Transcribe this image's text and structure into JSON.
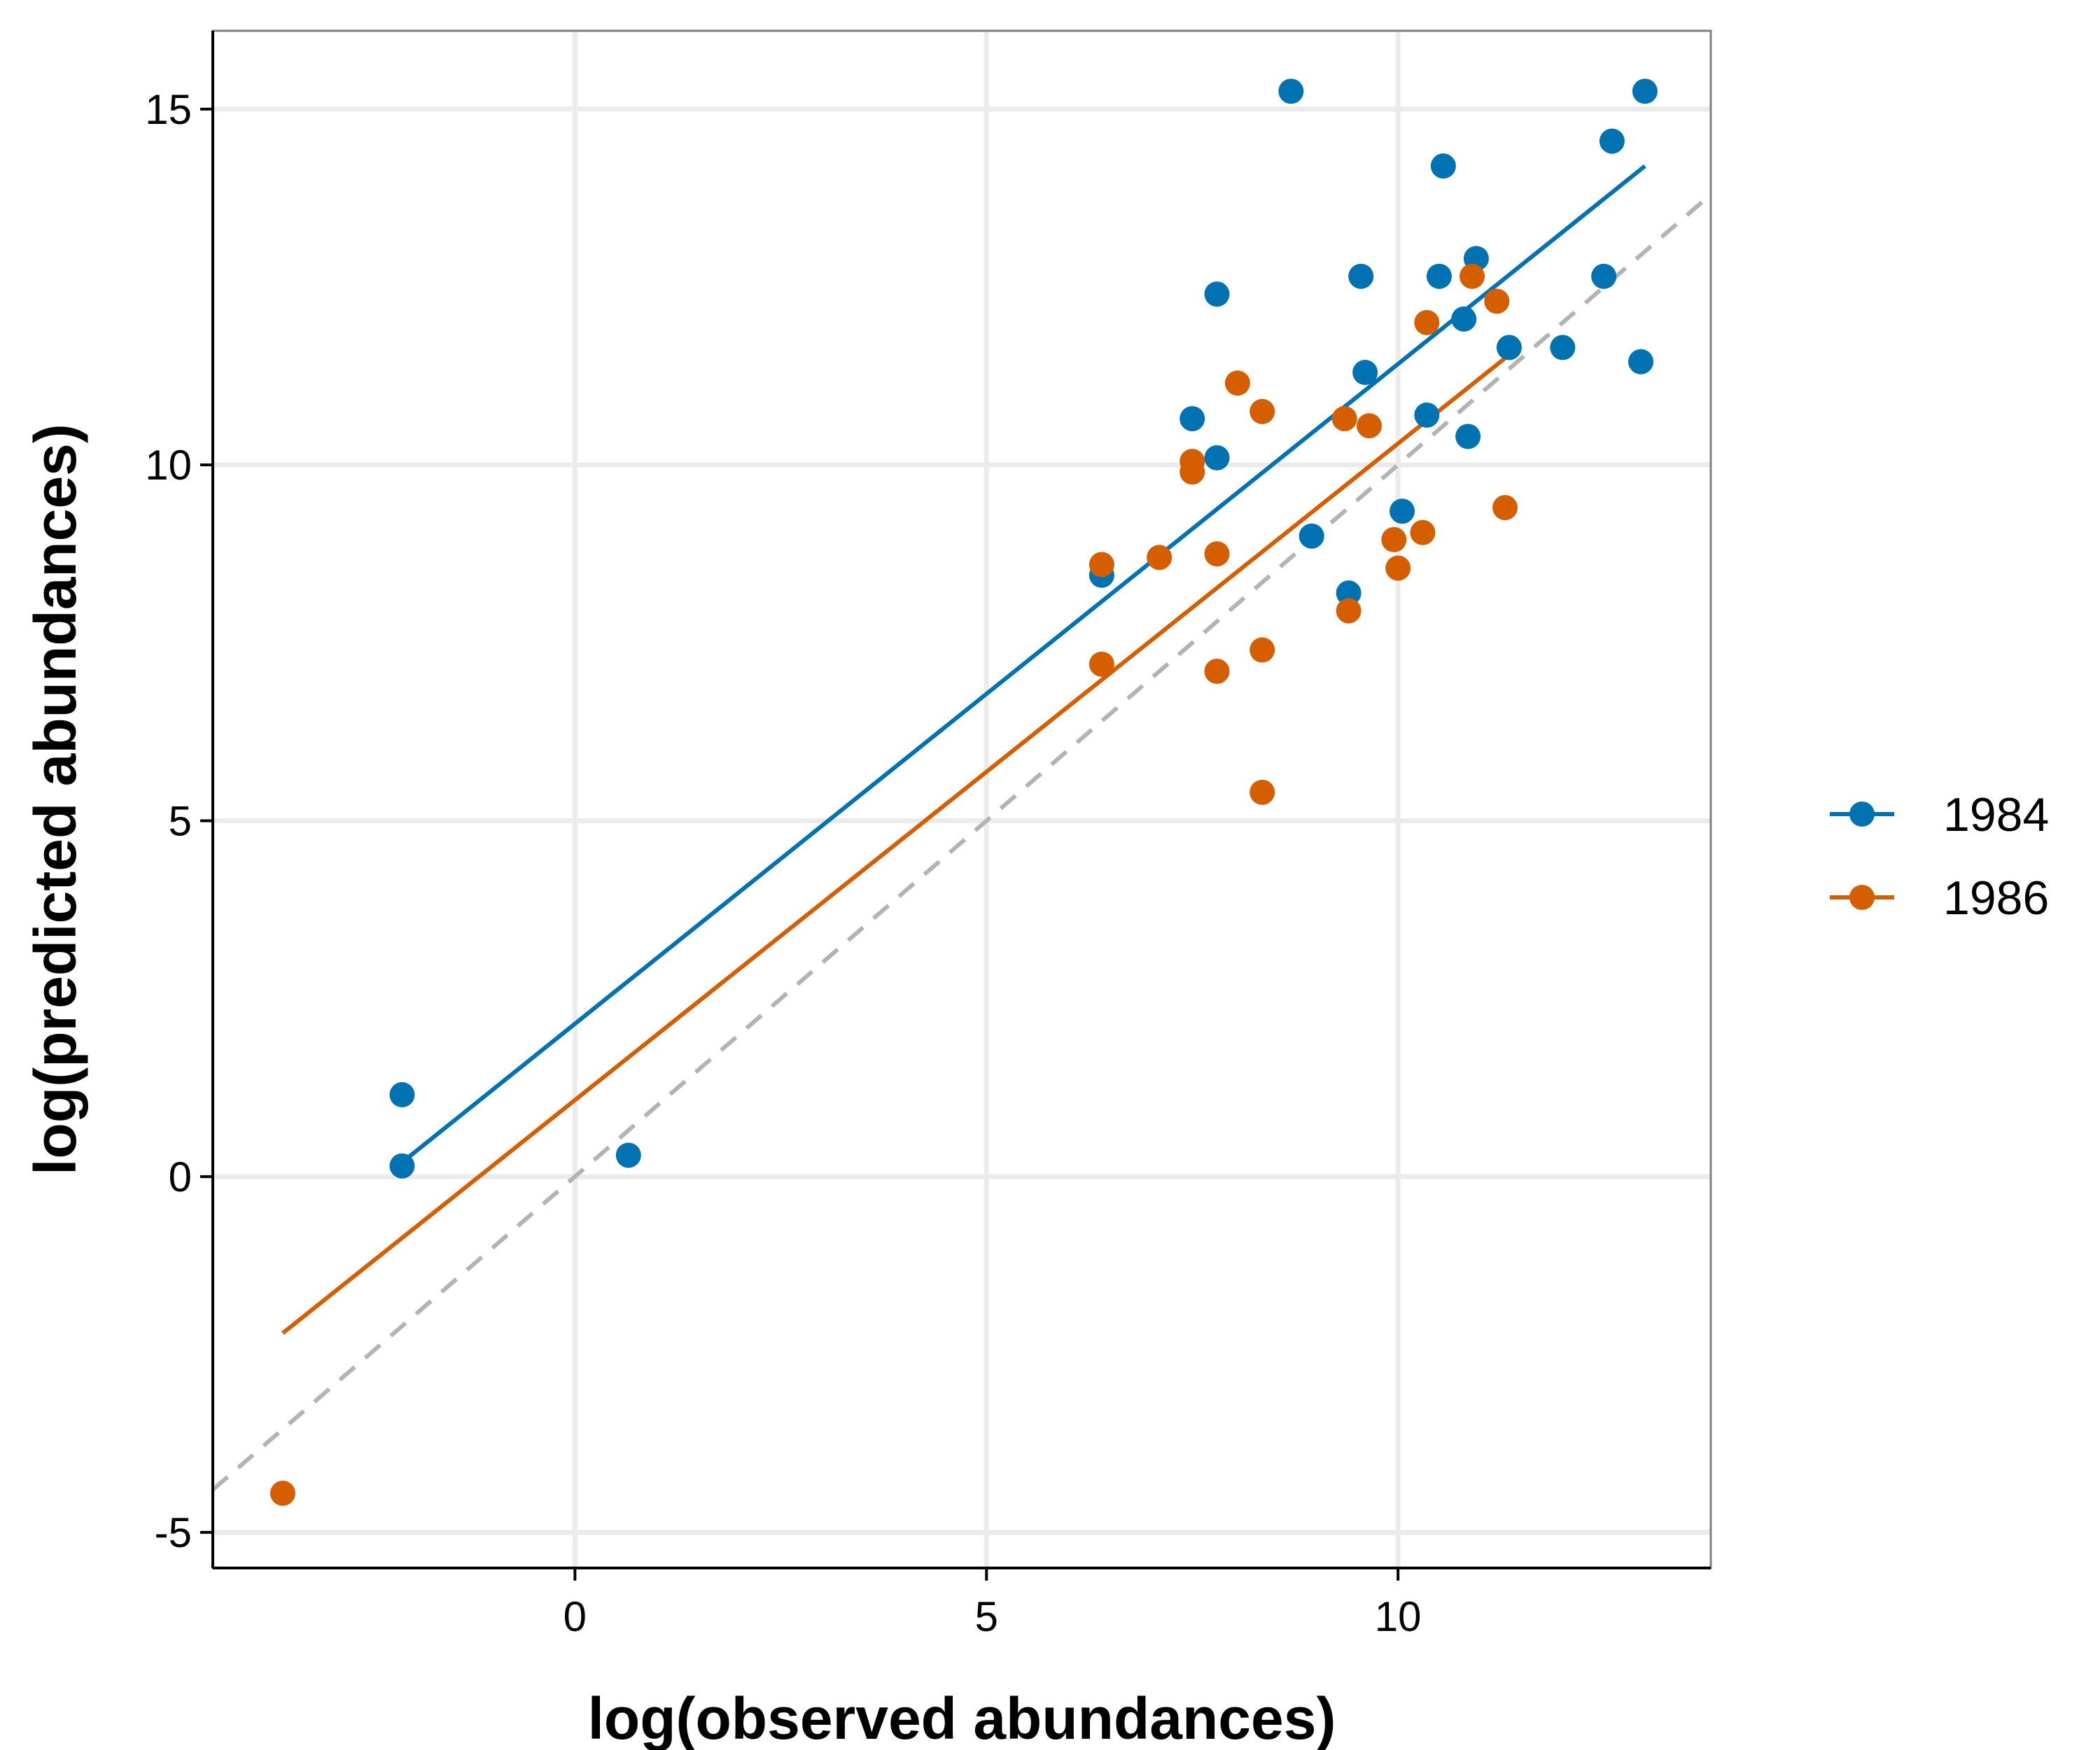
{
  "chart_data": {
    "type": "scatter",
    "xlabel": "log(observed abundances)",
    "ylabel": "log(predicted abundances)",
    "xlim": [
      -4.4,
      13.8
    ],
    "ylim": [
      -5.5,
      16.1
    ],
    "x_ticks": [
      0,
      5,
      10
    ],
    "y_ticks": [
      -5,
      0,
      5,
      10,
      15
    ],
    "grid": true,
    "legend_position": "right",
    "reference_line": {
      "style": "dashed",
      "color": "#b3b3b3",
      "slope": 1,
      "intercept": 0
    },
    "series": [
      {
        "name": "1984",
        "color": "#0072b2",
        "points": [
          [
            -2.1,
            1.15
          ],
          [
            -2.1,
            0.15
          ],
          [
            0.65,
            0.3
          ],
          [
            6.4,
            8.45
          ],
          [
            7.5,
            10.65
          ],
          [
            7.8,
            10.1
          ],
          [
            7.8,
            12.4
          ],
          [
            8.7,
            15.25
          ],
          [
            8.95,
            9.0
          ],
          [
            9.4,
            8.2
          ],
          [
            9.55,
            12.65
          ],
          [
            9.6,
            11.3
          ],
          [
            10.05,
            9.35
          ],
          [
            10.35,
            10.7
          ],
          [
            10.5,
            12.65
          ],
          [
            10.55,
            14.2
          ],
          [
            10.8,
            12.05
          ],
          [
            10.85,
            10.4
          ],
          [
            10.95,
            12.9
          ],
          [
            11.35,
            11.65
          ],
          [
            12.0,
            11.65
          ],
          [
            12.5,
            12.65
          ],
          [
            12.6,
            14.55
          ],
          [
            12.95,
            11.45
          ],
          [
            13.0,
            15.25
          ]
        ],
        "fit": {
          "x": [
            -2.1,
            13.0
          ],
          "y": [
            0.2,
            14.2
          ]
        }
      },
      {
        "name": "1986",
        "color": "#d55e00",
        "points": [
          [
            -3.55,
            -4.45
          ],
          [
            6.4,
            8.6
          ],
          [
            6.4,
            7.2
          ],
          [
            7.1,
            8.7
          ],
          [
            7.5,
            10.05
          ],
          [
            7.5,
            9.9
          ],
          [
            7.8,
            8.75
          ],
          [
            7.8,
            7.1
          ],
          [
            8.05,
            11.15
          ],
          [
            8.35,
            10.75
          ],
          [
            8.35,
            7.4
          ],
          [
            8.35,
            5.4
          ],
          [
            9.35,
            10.65
          ],
          [
            9.4,
            7.95
          ],
          [
            9.65,
            10.55
          ],
          [
            9.95,
            8.95
          ],
          [
            10.0,
            8.55
          ],
          [
            10.3,
            9.05
          ],
          [
            10.35,
            12.0
          ],
          [
            10.9,
            12.65
          ],
          [
            11.2,
            12.3
          ],
          [
            11.3,
            9.4
          ]
        ],
        "fit": {
          "x": [
            -3.55,
            11.3
          ],
          "y": [
            -2.2,
            11.5
          ]
        }
      }
    ]
  }
}
